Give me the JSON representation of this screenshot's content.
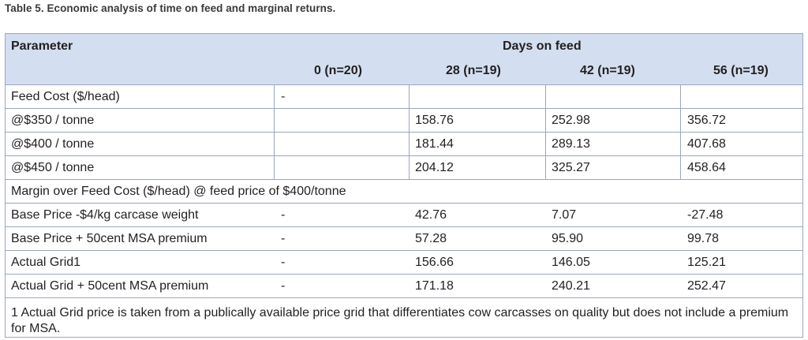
{
  "caption": "Table 5. Economic analysis of time on feed and marginal returns.",
  "header": {
    "parameter": "Parameter",
    "days_on_feed": "Days on feed",
    "columns": [
      "0 (n=20)",
      "28 (n=19)",
      "42 (n=19)",
      "56 (n=19)"
    ]
  },
  "rows": [
    {
      "label": "Feed Cost ($/head)",
      "values": [
        "-",
        "",
        "",
        ""
      ]
    },
    {
      "label": "@$350 / tonne",
      "values": [
        "",
        "158.76",
        "252.98",
        "356.72"
      ]
    },
    {
      "label": "@$400 / tonne",
      "values": [
        "",
        "181.44",
        "289.13",
        "407.68"
      ]
    },
    {
      "label": "@$450 / tonne",
      "values": [
        "",
        "204.12",
        "325.27",
        "458.64"
      ]
    },
    {
      "label": "Margin over Feed Cost ($/head) @ feed price of $400/tonne",
      "values": [
        "",
        "",
        "",
        ""
      ]
    },
    {
      "label": "Base Price -$4/kg carcase weight",
      "values": [
        "-",
        "42.76",
        "7.07",
        "-27.48"
      ]
    },
    {
      "label": "Base Price + 50cent MSA premium",
      "values": [
        "-",
        "57.28",
        "95.90",
        "99.78"
      ]
    },
    {
      "label": "Actual Grid1",
      "values": [
        "-",
        "156.66",
        "146.05",
        "125.21"
      ]
    },
    {
      "label": "Actual Grid + 50cent MSA premium",
      "values": [
        "-",
        "171.18",
        "240.21",
        "252.47"
      ]
    }
  ],
  "footnote": "1 Actual Grid price is taken from a publically available price grid that differentiates cow carcasses on quality but does not include a premium for MSA.",
  "colors": {
    "header_bg": "#d3dff0",
    "border": "#9aa6c4"
  }
}
